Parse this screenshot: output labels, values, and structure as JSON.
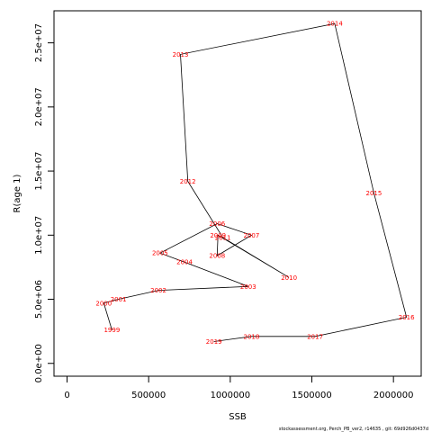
{
  "chart_data": {
    "type": "line",
    "xlabel": "SSB",
    "ylabel": "R(age 1)",
    "xlim": [
      -80000,
      2170000
    ],
    "ylim": [
      -1000000,
      27500000
    ],
    "xticks": [
      0,
      500000,
      1000000,
      1500000,
      2000000
    ],
    "xtick_labels": [
      "0",
      "500000",
      "1000000",
      "1500000",
      "2000000"
    ],
    "yticks": [
      0,
      5000000,
      10000000,
      15000000,
      20000000,
      25000000
    ],
    "ytick_labels": [
      "0.0e+00",
      "5.0e+06",
      "1.0e+07",
      "1.5e+07",
      "2.0e+07",
      "2.5e+07"
    ],
    "points": [
      {
        "year": "1999",
        "x": 275000,
        "y": 2600000
      },
      {
        "year": "2000",
        "x": 225000,
        "y": 4700000
      },
      {
        "year": "2001",
        "x": 315000,
        "y": 5000000
      },
      {
        "year": "2002",
        "x": 560000,
        "y": 5700000
      },
      {
        "year": "2003",
        "x": 1110000,
        "y": 6000000
      },
      {
        "year": "2004",
        "x": 720000,
        "y": 7900000
      },
      {
        "year": "2005",
        "x": 570000,
        "y": 8600000
      },
      {
        "year": "2006",
        "x": 920000,
        "y": 10900000
      },
      {
        "year": "2007",
        "x": 1130000,
        "y": 10000000
      },
      {
        "year": "2008",
        "x": 920000,
        "y": 8400000
      },
      {
        "year": "2009",
        "x": 925000,
        "y": 10000000
      },
      {
        "year": "2010",
        "x": 1360000,
        "y": 6700000
      },
      {
        "year": "2011",
        "x": 955000,
        "y": 9800000
      },
      {
        "year": "2012",
        "x": 740000,
        "y": 14200000
      },
      {
        "year": "2013",
        "x": 695000,
        "y": 24100000
      },
      {
        "year": "2014",
        "x": 1640000,
        "y": 26500000
      },
      {
        "year": "2015",
        "x": 1880000,
        "y": 13300000
      },
      {
        "year": "2016",
        "x": 2080000,
        "y": 3600000
      },
      {
        "year": "2017",
        "x": 1520000,
        "y": 2100000
      },
      {
        "year": "2018",
        "x": 1130000,
        "y": 2100000
      },
      {
        "year": "2019",
        "x": 900000,
        "y": 1700000
      }
    ],
    "line_color": "#000000",
    "label_color": "#ff0000"
  },
  "footer": "stockassessment.org, Perch_PB_ver2, r14635 ,  git: 69d926d0437d"
}
